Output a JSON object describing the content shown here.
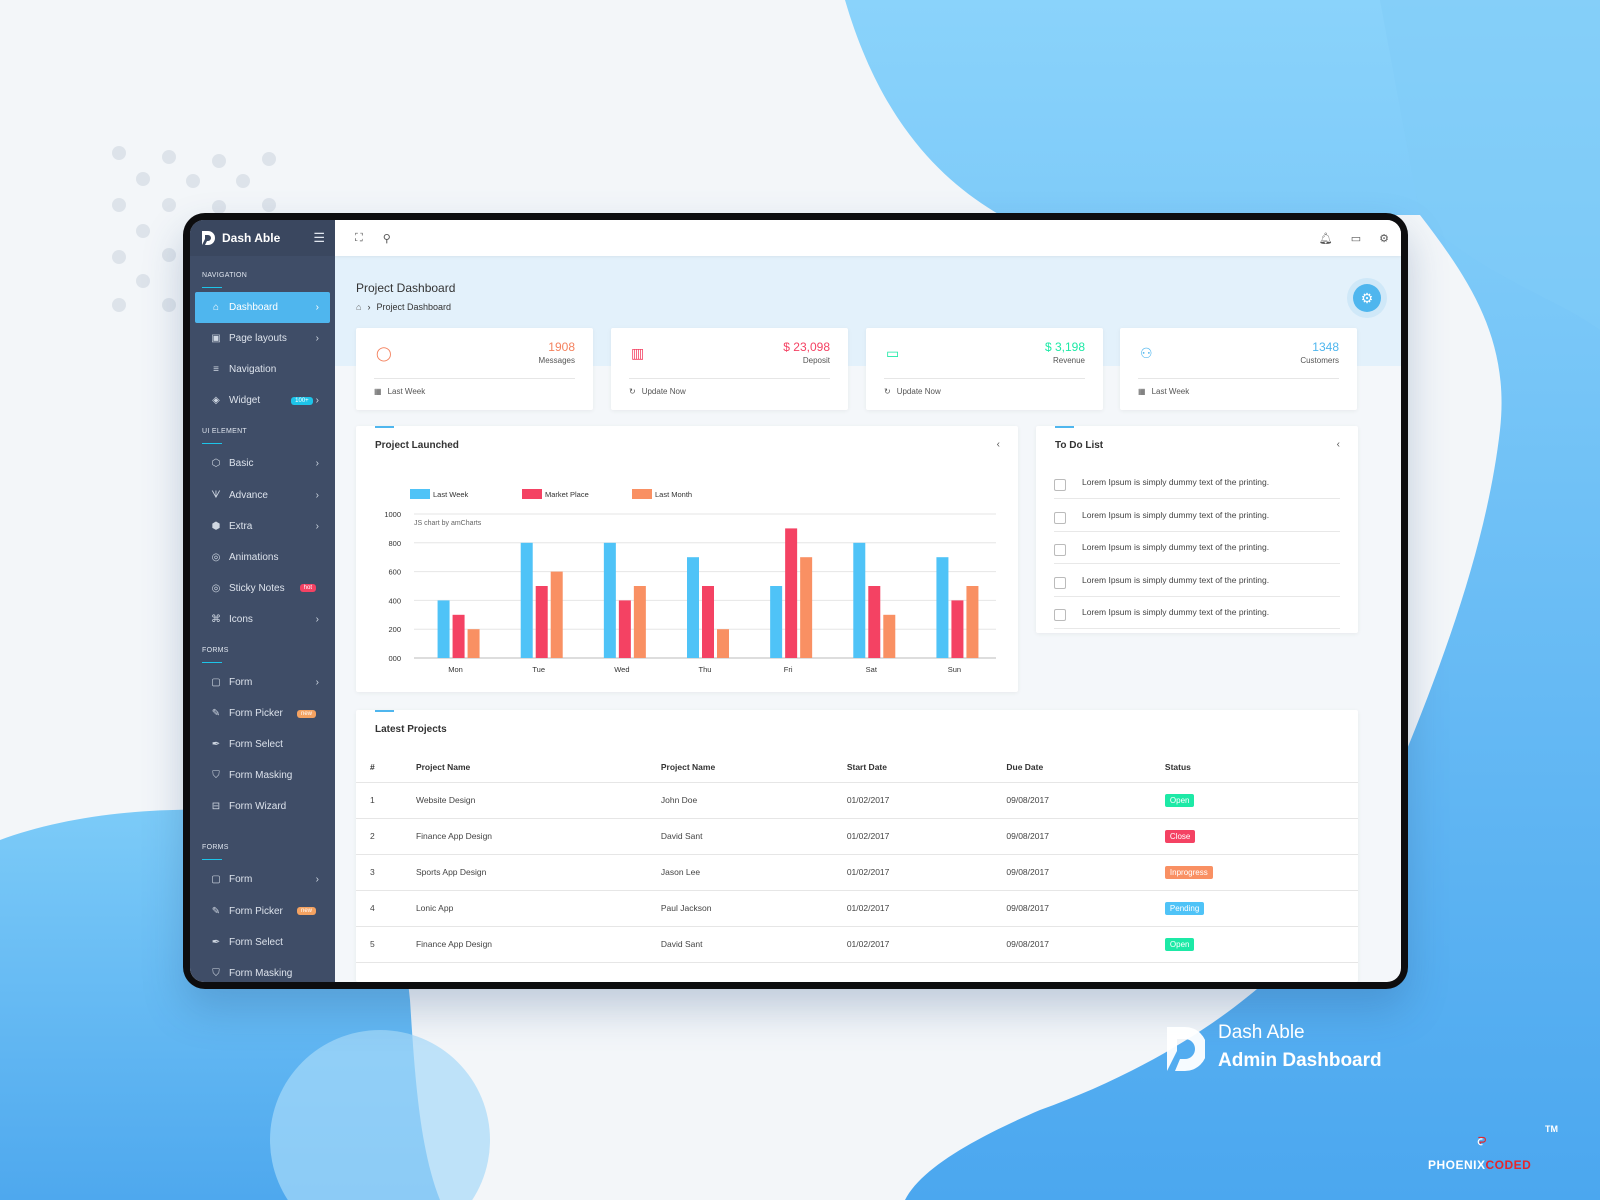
{
  "brand": {
    "name": "Dash Able"
  },
  "caption": {
    "line1": "Dash Able",
    "line2": "Admin Dashboard",
    "company_a": "PHOENIX",
    "company_b": "CODED",
    "tm": "TM"
  },
  "sidebar": {
    "sections": [
      {
        "title": "NAVIGATION",
        "items": [
          {
            "label": "Dashboard",
            "icon": "home-icon",
            "arrow": true,
            "active": true
          },
          {
            "label": "Page layouts",
            "icon": "layout-icon",
            "arrow": true
          },
          {
            "label": "Navigation",
            "icon": "menu-icon",
            "arrow": false
          },
          {
            "label": "Widget",
            "icon": "layers-icon",
            "arrow": true,
            "badge": "100+",
            "badge_color": "blue"
          }
        ]
      },
      {
        "title": "UI ELEMENT",
        "items": [
          {
            "label": "Basic",
            "icon": "box-icon",
            "arrow": true
          },
          {
            "label": "Advance",
            "icon": "gitlab-icon",
            "arrow": true
          },
          {
            "label": "Extra",
            "icon": "package-icon",
            "arrow": true
          },
          {
            "label": "Animations",
            "icon": "aperture-icon",
            "arrow": false
          },
          {
            "label": "Sticky Notes",
            "icon": "aperture-icon",
            "arrow": false,
            "badge": "hot",
            "badge_color": "red"
          },
          {
            "label": "Icons",
            "icon": "command-icon",
            "arrow": true
          }
        ]
      },
      {
        "title": "FORMS",
        "items": [
          {
            "label": "Form",
            "icon": "clipboard-icon",
            "arrow": true
          },
          {
            "label": "Form Picker",
            "icon": "edit-icon",
            "arrow": false,
            "badge": "new",
            "badge_color": "orange"
          },
          {
            "label": "Form Select",
            "icon": "feather-icon",
            "arrow": false
          },
          {
            "label": "Form Masking",
            "icon": "shield-icon",
            "arrow": false
          },
          {
            "label": "Form Wizard",
            "icon": "briefcase-icon",
            "arrow": false
          }
        ]
      },
      {
        "title": "FORMS",
        "items": [
          {
            "label": "Form",
            "icon": "clipboard-icon",
            "arrow": true
          },
          {
            "label": "Form Picker",
            "icon": "edit-icon",
            "arrow": false,
            "badge": "new",
            "badge_color": "orange"
          },
          {
            "label": "Form Select",
            "icon": "feather-icon",
            "arrow": false
          },
          {
            "label": "Form Masking",
            "icon": "shield-icon",
            "arrow": false
          }
        ]
      }
    ]
  },
  "page": {
    "title": "Project Dashboard",
    "breadcrumb": "Project Dashboard"
  },
  "stats": [
    {
      "value": "1908",
      "label": "Messages",
      "footer": "Last Week",
      "icon": "message-icon",
      "color": "#f4825f",
      "footer_icon": "calendar-icon"
    },
    {
      "value": "$ 23,098",
      "label": "Deposit",
      "footer": "Update Now",
      "icon": "building-icon",
      "color": "#f44263",
      "footer_icon": "refresh-icon"
    },
    {
      "value": "$ 3,198",
      "label": "Revenue",
      "footer": "Update Now",
      "icon": "money-icon",
      "color": "#1de9a6",
      "footer_icon": "refresh-icon"
    },
    {
      "value": "1348",
      "label": "Customers",
      "footer": "Last Week",
      "icon": "users-icon",
      "color": "#4fb6ee",
      "footer_icon": "calendar-icon"
    }
  ],
  "chart_card": {
    "title": "Project Launched",
    "credit": "JS chart by amCharts"
  },
  "chart_data": {
    "type": "bar",
    "categories": [
      "Mon",
      "Tue",
      "Wed",
      "Thu",
      "Fri",
      "Sat",
      "Sun"
    ],
    "series": [
      {
        "name": "Last Week",
        "color": "#4fc3f7",
        "values": [
          400,
          800,
          800,
          700,
          500,
          800,
          700
        ]
      },
      {
        "name": "Market Place",
        "color": "#f44263",
        "values": [
          300,
          500,
          400,
          500,
          900,
          500,
          400
        ]
      },
      {
        "name": "Last Month",
        "color": "#f99063",
        "values": [
          200,
          600,
          500,
          200,
          700,
          300,
          500
        ]
      }
    ],
    "yticks": [
      "000",
      "200",
      "400",
      "600",
      "800",
      "1000"
    ],
    "ylim": [
      0,
      1000
    ],
    "legend": "top-left",
    "grid": true
  },
  "todo": {
    "title": "To Do List",
    "items": [
      "Lorem Ipsum is simply dummy text of the printing.",
      "Lorem Ipsum is simply dummy text of the printing.",
      "Lorem Ipsum is simply dummy text of the printing.",
      "Lorem Ipsum is simply dummy text of the printing.",
      "Lorem Ipsum is simply dummy text of the printing."
    ]
  },
  "projects": {
    "title": "Latest Projects",
    "columns": [
      "#",
      "Project Name",
      "Project Name",
      "Start Date",
      "Due Date",
      "Status"
    ],
    "rows": [
      {
        "n": "1",
        "project": "Website Design",
        "owner": "John Doe",
        "start": "01/02/2017",
        "due": "09/08/2017",
        "status": "Open",
        "status_color": "#1de9a6"
      },
      {
        "n": "2",
        "project": "Finance App Design",
        "owner": "David Sant",
        "start": "01/02/2017",
        "due": "09/08/2017",
        "status": "Close",
        "status_color": "#f44263"
      },
      {
        "n": "3",
        "project": "Sports App Design",
        "owner": "Jason Lee",
        "start": "01/02/2017",
        "due": "09/08/2017",
        "status": "Inprogress",
        "status_color": "#f99063"
      },
      {
        "n": "4",
        "project": "Lonic App",
        "owner": "Paul Jackson",
        "start": "01/02/2017",
        "due": "09/08/2017",
        "status": "Pending",
        "status_color": "#4fc3f7"
      },
      {
        "n": "5",
        "project": "Finance App Design",
        "owner": "David Sant",
        "start": "01/02/2017",
        "due": "09/08/2017",
        "status": "Open",
        "status_color": "#1de9a6"
      }
    ]
  }
}
